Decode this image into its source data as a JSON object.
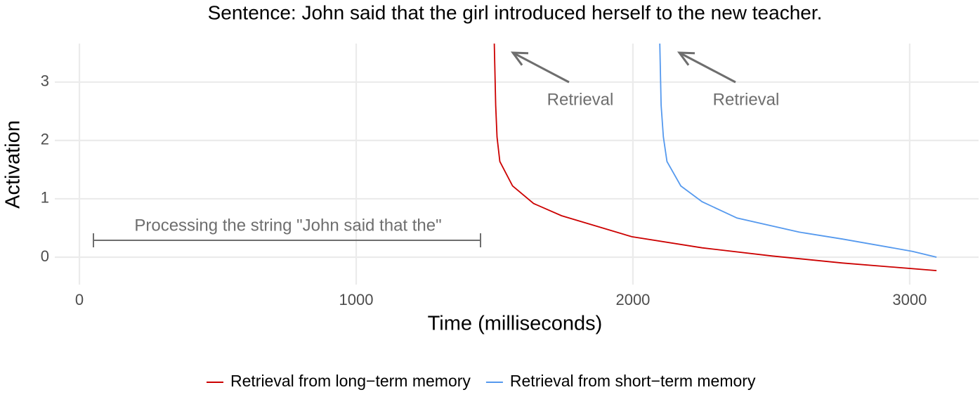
{
  "chart_data": {
    "type": "line",
    "title": "Sentence: John said that the girl introduced herself to the new teacher.",
    "x_label": "Time (milliseconds)",
    "y_label": "Activation",
    "xlim": [
      -89,
      3249
    ],
    "ylim": [
      -0.47,
      3.66
    ],
    "xticks": [
      0,
      1000,
      2000,
      3000
    ],
    "yticks": [
      0,
      1,
      2,
      3
    ],
    "grid": true,
    "legend": "bottom",
    "annotations": [
      "Retrieval",
      "Retrieval",
      "Processing the string \"John said that the\""
    ],
    "series": [
      {
        "name": "Retrieval from long−term memory",
        "color": "#cc0000",
        "x": [
          1499,
          1504,
          1509,
          1519,
          1565,
          1641,
          1742,
          1996,
          2250,
          2503,
          2757,
          3097
        ],
        "values": [
          3.66,
          2.6,
          2.06,
          1.64,
          1.22,
          0.92,
          0.71,
          0.35,
          0.16,
          0.02,
          -0.1,
          -0.23
        ]
      },
      {
        "name": "Retrieval from short−term memory",
        "color": "#5599ee",
        "x": [
          2097,
          2102,
          2110,
          2123,
          2173,
          2250,
          2376,
          2600,
          2757,
          3010,
          3097
        ],
        "values": [
          3.66,
          2.6,
          2.06,
          1.64,
          1.22,
          0.95,
          0.67,
          0.43,
          0.31,
          0.1,
          0
        ]
      }
    ]
  }
}
